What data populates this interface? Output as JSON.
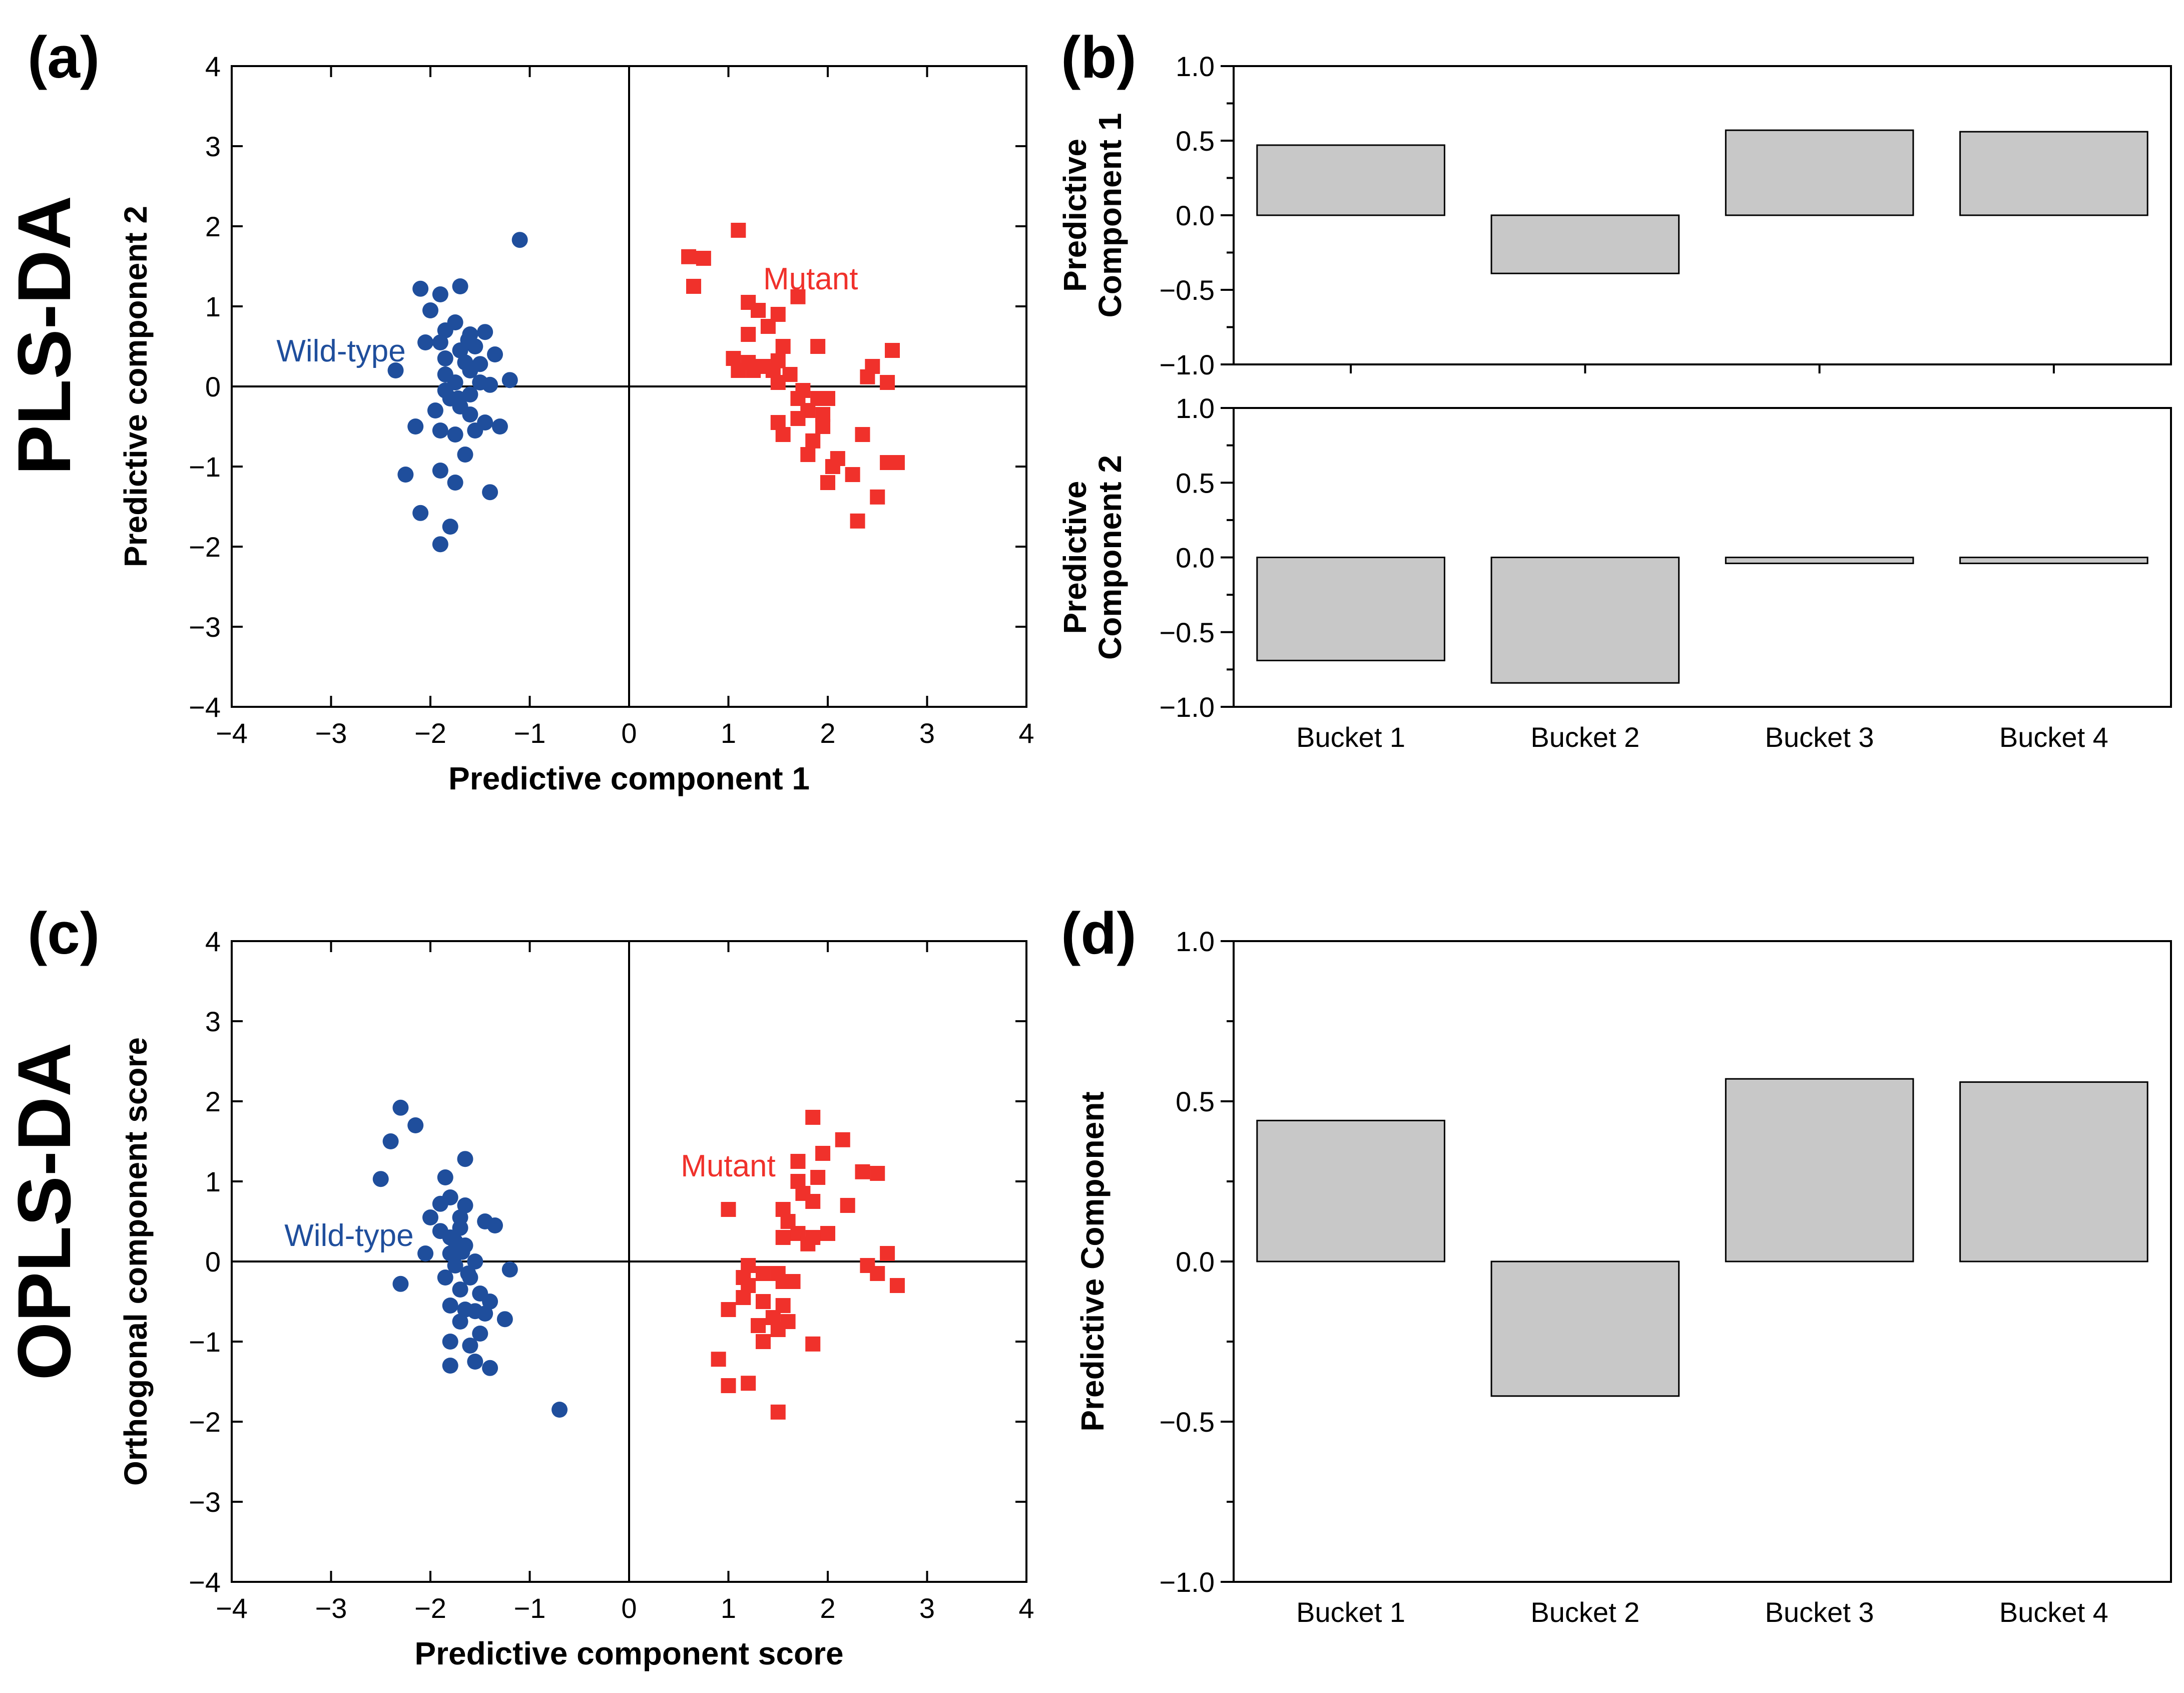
{
  "figure": {
    "row_titles": [
      "PLS-DA",
      "OPLS-DA"
    ],
    "panel_labels": [
      "(a)",
      "(b)",
      "(c)",
      "(d)"
    ],
    "colors": {
      "wild_type": "#1f4e9c",
      "mutant": "#f0312b",
      "bar_fill": "#c8c8c8"
    }
  },
  "chart_data": [
    {
      "id": "a",
      "type": "scatter",
      "xlabel": "Predictive component 1",
      "ylabel": "Predictive component 2",
      "xlim": [
        -4,
        4
      ],
      "ylim": [
        -4,
        4
      ],
      "xticks": [
        -4,
        -3,
        -2,
        -1,
        0,
        1,
        2,
        3,
        4
      ],
      "yticks": [
        -4,
        -3,
        -2,
        -1,
        0,
        1,
        2,
        3,
        4
      ],
      "grid": false,
      "zero_lines": true,
      "series": [
        {
          "name": "Wild-type",
          "marker": "circle",
          "color": "#1f4e9c",
          "points": [
            [
              -1.1,
              1.83
            ],
            [
              -2.1,
              1.22
            ],
            [
              -1.9,
              1.15
            ],
            [
              -1.7,
              1.25
            ],
            [
              -2.0,
              0.95
            ],
            [
              -1.85,
              0.7
            ],
            [
              -2.05,
              0.55
            ],
            [
              -1.6,
              0.65
            ],
            [
              -1.45,
              0.68
            ],
            [
              -1.9,
              0.55
            ],
            [
              -1.75,
              0.8
            ],
            [
              -1.55,
              0.5
            ],
            [
              -1.7,
              0.45
            ],
            [
              -1.35,
              0.4
            ],
            [
              -1.85,
              0.35
            ],
            [
              -2.35,
              0.2
            ],
            [
              -1.6,
              0.2
            ],
            [
              -1.85,
              0.15
            ],
            [
              -1.5,
              0.05
            ],
            [
              -1.75,
              0.05
            ],
            [
              -1.4,
              0.02
            ],
            [
              -1.2,
              0.08
            ],
            [
              -1.6,
              -0.1
            ],
            [
              -1.8,
              -0.15
            ],
            [
              -1.7,
              -0.25
            ],
            [
              -1.95,
              -0.3
            ],
            [
              -1.45,
              -0.45
            ],
            [
              -1.55,
              -0.55
            ],
            [
              -1.3,
              -0.5
            ],
            [
              -1.9,
              -0.55
            ],
            [
              -1.75,
              -0.6
            ],
            [
              -2.15,
              -0.5
            ],
            [
              -1.65,
              -0.85
            ],
            [
              -2.25,
              -1.1
            ],
            [
              -1.9,
              -1.05
            ],
            [
              -1.75,
              -1.2
            ],
            [
              -1.4,
              -1.32
            ],
            [
              -2.1,
              -1.58
            ],
            [
              -1.8,
              -1.75
            ],
            [
              -1.9,
              -1.97
            ],
            [
              -1.6,
              -0.35
            ],
            [
              -1.85,
              -0.05
            ],
            [
              -1.65,
              0.3
            ],
            [
              -1.72,
              -0.15
            ],
            [
              -1.5,
              0.28
            ],
            [
              -1.62,
              0.58
            ]
          ]
        },
        {
          "name": "Mutant",
          "marker": "square",
          "color": "#f0312b",
          "points": [
            [
              1.1,
              1.95
            ],
            [
              0.6,
              1.62
            ],
            [
              0.75,
              1.6
            ],
            [
              0.65,
              1.25
            ],
            [
              1.7,
              1.12
            ],
            [
              1.2,
              1.05
            ],
            [
              1.3,
              0.95
            ],
            [
              1.5,
              0.9
            ],
            [
              1.4,
              0.75
            ],
            [
              1.2,
              0.65
            ],
            [
              1.55,
              0.5
            ],
            [
              1.9,
              0.5
            ],
            [
              1.05,
              0.35
            ],
            [
              1.2,
              0.3
            ],
            [
              1.5,
              0.32
            ],
            [
              1.1,
              0.2
            ],
            [
              1.25,
              0.2
            ],
            [
              1.35,
              0.25
            ],
            [
              1.45,
              0.2
            ],
            [
              1.62,
              0.15
            ],
            [
              1.5,
              0.05
            ],
            [
              2.65,
              0.45
            ],
            [
              2.45,
              0.25
            ],
            [
              2.4,
              0.12
            ],
            [
              2.6,
              0.05
            ],
            [
              1.7,
              -0.15
            ],
            [
              1.9,
              -0.15
            ],
            [
              2.0,
              -0.15
            ],
            [
              1.8,
              -0.3
            ],
            [
              1.7,
              -0.4
            ],
            [
              1.5,
              -0.45
            ],
            [
              1.95,
              -0.5
            ],
            [
              1.55,
              -0.6
            ],
            [
              2.35,
              -0.6
            ],
            [
              1.85,
              -0.68
            ],
            [
              1.8,
              -0.85
            ],
            [
              2.1,
              -0.9
            ],
            [
              2.05,
              -1.0
            ],
            [
              2.6,
              -0.95
            ],
            [
              2.7,
              -0.95
            ],
            [
              2.25,
              -1.1
            ],
            [
              2.0,
              -1.2
            ],
            [
              2.5,
              -1.38
            ],
            [
              2.3,
              -1.68
            ],
            [
              1.75,
              -0.05
            ],
            [
              1.95,
              -0.35
            ]
          ]
        }
      ],
      "annotations": [
        {
          "text": "Wild-type",
          "x": -3.55,
          "y": 0.45,
          "color": "#1f4e9c"
        },
        {
          "text": "Mutant",
          "x": 1.35,
          "y": 1.35,
          "color": "#f0312b"
        }
      ]
    },
    {
      "id": "b1",
      "type": "bar",
      "categories": [
        "Bucket 1",
        "Bucket 2",
        "Bucket 3",
        "Bucket 4"
      ],
      "values": [
        0.47,
        -0.39,
        0.57,
        0.56
      ],
      "ylabel": [
        "Predictive",
        "Component 1"
      ],
      "ylim": [
        -1.0,
        1.0
      ],
      "yticks": [
        "1.0",
        "0.5",
        "0.0",
        "−0.5",
        "−1.0"
      ],
      "grid": false
    },
    {
      "id": "b2",
      "type": "bar",
      "categories": [
        "Bucket 1",
        "Bucket 2",
        "Bucket 3",
        "Bucket 4"
      ],
      "values": [
        -0.69,
        -0.84,
        -0.04,
        -0.04
      ],
      "ylabel": [
        "Predictive",
        "Component 2"
      ],
      "ylim": [
        -1.0,
        1.0
      ],
      "yticks": [
        "1.0",
        "0.5",
        "0.0",
        "−0.5",
        "−1.0"
      ],
      "grid": false
    },
    {
      "id": "c",
      "type": "scatter",
      "xlabel": "Predictive component score",
      "ylabel": "Orthogonal component score",
      "xlim": [
        -4,
        4
      ],
      "ylim": [
        -4,
        4
      ],
      "xticks": [
        -4,
        -3,
        -2,
        -1,
        0,
        1,
        2,
        3,
        4
      ],
      "yticks": [
        -4,
        -3,
        -2,
        -1,
        0,
        1,
        2,
        3,
        4
      ],
      "grid": false,
      "zero_lines": true,
      "series": [
        {
          "name": "Wild-type",
          "marker": "circle",
          "color": "#1f4e9c",
          "points": [
            [
              -2.3,
              1.92
            ],
            [
              -2.15,
              1.7
            ],
            [
              -2.4,
              1.5
            ],
            [
              -1.65,
              1.28
            ],
            [
              -1.85,
              1.05
            ],
            [
              -2.5,
              1.03
            ],
            [
              -1.8,
              0.8
            ],
            [
              -1.9,
              0.72
            ],
            [
              -1.65,
              0.7
            ],
            [
              -1.7,
              0.55
            ],
            [
              -2.0,
              0.55
            ],
            [
              -1.45,
              0.5
            ],
            [
              -1.35,
              0.45
            ],
            [
              -1.7,
              0.42
            ],
            [
              -1.8,
              0.3
            ],
            [
              -1.75,
              0.25
            ],
            [
              -1.65,
              0.2
            ],
            [
              -2.05,
              0.1
            ],
            [
              -1.8,
              0.1
            ],
            [
              -1.55,
              0.0
            ],
            [
              -1.2,
              -0.1
            ],
            [
              -1.6,
              -0.2
            ],
            [
              -1.85,
              -0.2
            ],
            [
              -2.3,
              -0.28
            ],
            [
              -1.7,
              -0.35
            ],
            [
              -1.5,
              -0.4
            ],
            [
              -1.4,
              -0.5
            ],
            [
              -1.8,
              -0.55
            ],
            [
              -1.65,
              -0.6
            ],
            [
              -1.55,
              -0.62
            ],
            [
              -1.45,
              -0.65
            ],
            [
              -1.25,
              -0.72
            ],
            [
              -1.7,
              -0.75
            ],
            [
              -1.5,
              -0.9
            ],
            [
              -1.8,
              -1.0
            ],
            [
              -1.6,
              -1.05
            ],
            [
              -1.8,
              -1.3
            ],
            [
              -1.55,
              -1.25
            ],
            [
              -1.4,
              -1.33
            ],
            [
              -0.7,
              -1.85
            ],
            [
              -1.75,
              -0.05
            ],
            [
              -1.62,
              -0.15
            ],
            [
              -1.68,
              0.12
            ],
            [
              -1.9,
              0.38
            ]
          ]
        },
        {
          "name": "Mutant",
          "marker": "square",
          "color": "#f0312b",
          "points": [
            [
              1.85,
              1.8
            ],
            [
              2.15,
              1.52
            ],
            [
              1.95,
              1.35
            ],
            [
              1.7,
              1.25
            ],
            [
              2.35,
              1.12
            ],
            [
              2.5,
              1.1
            ],
            [
              1.9,
              1.05
            ],
            [
              1.7,
              1.0
            ],
            [
              1.75,
              0.85
            ],
            [
              1.85,
              0.75
            ],
            [
              1.0,
              0.65
            ],
            [
              1.55,
              0.65
            ],
            [
              2.2,
              0.7
            ],
            [
              1.6,
              0.5
            ],
            [
              1.7,
              0.35
            ],
            [
              1.55,
              0.3
            ],
            [
              2.0,
              0.35
            ],
            [
              1.8,
              0.22
            ],
            [
              1.85,
              0.3
            ],
            [
              2.6,
              0.1
            ],
            [
              2.4,
              -0.05
            ],
            [
              1.2,
              -0.05
            ],
            [
              1.35,
              -0.15
            ],
            [
              1.5,
              -0.15
            ],
            [
              1.15,
              -0.2
            ],
            [
              1.55,
              -0.25
            ],
            [
              1.65,
              -0.25
            ],
            [
              1.2,
              -0.3
            ],
            [
              2.5,
              -0.15
            ],
            [
              2.7,
              -0.3
            ],
            [
              1.15,
              -0.45
            ],
            [
              1.35,
              -0.5
            ],
            [
              1.55,
              -0.55
            ],
            [
              1.0,
              -0.6
            ],
            [
              1.45,
              -0.7
            ],
            [
              1.6,
              -0.75
            ],
            [
              1.3,
              -0.8
            ],
            [
              1.5,
              -0.85
            ],
            [
              1.35,
              -1.0
            ],
            [
              1.85,
              -1.03
            ],
            [
              0.9,
              -1.22
            ],
            [
              1.2,
              -1.52
            ],
            [
              1.0,
              -1.55
            ],
            [
              1.5,
              -1.88
            ]
          ]
        }
      ],
      "annotations": [
        {
          "text": "Wild-type",
          "x": -3.47,
          "y": 0.33,
          "color": "#1f4e9c"
        },
        {
          "text": "Mutant",
          "x": 0.52,
          "y": 1.2,
          "color": "#f0312b"
        }
      ]
    },
    {
      "id": "d",
      "type": "bar",
      "categories": [
        "Bucket 1",
        "Bucket 2",
        "Bucket 3",
        "Bucket 4"
      ],
      "values": [
        0.44,
        -0.42,
        0.57,
        0.56
      ],
      "ylabel": [
        "Predictive Component"
      ],
      "ylim": [
        -1.0,
        1.0
      ],
      "yticks": [
        "1.0",
        "0.5",
        "0.0",
        "−0.5",
        "−1.0"
      ],
      "grid": false
    }
  ]
}
